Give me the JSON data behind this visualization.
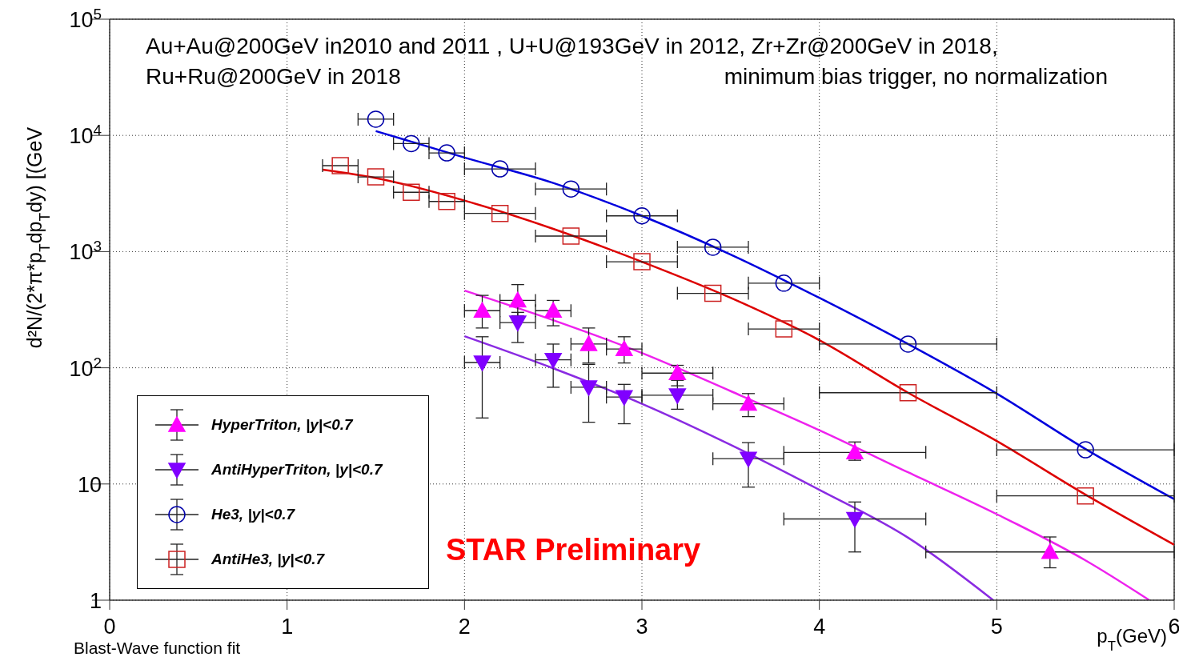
{
  "chart_data": {
    "type": "scatter",
    "xlabel": "p$_{T}$(GeV)",
    "ylabel": "d²N/(2*π*p$_{T}$dp$_{T}$dy) [(GeV",
    "log": "y",
    "xlim": [
      0,
      6
    ],
    "xticks": [
      0,
      1,
      2,
      3,
      4,
      5,
      6
    ],
    "ylim": [
      1,
      100000
    ],
    "yticks": [
      1,
      10,
      {
        "value": 100,
        "label": "10$^{2}$"
      },
      {
        "value": 1000,
        "label": "10$^{3}$"
      },
      {
        "value": 10000,
        "label": "10$^{4}$"
      },
      {
        "value": 100000,
        "label": "10$^{5}$"
      }
    ],
    "grid": true,
    "legend": "bottom left",
    "annotations": [
      "Au+Au@200GeV in2010 and 2011 , U+U@193GeV in 2012, Zr+Zr@200GeV in 2018,",
      "Ru+Ru@200GeV in 2018",
      "minimum bias trigger, no normalization",
      "STAR Preliminary",
      "Blast-Wave function fit"
    ],
    "series": [
      {
        "name": "HyperTriton, |y|<0.7",
        "marker": "triangle",
        "color": "#ff00ff",
        "x": [
          2.1,
          2.3,
          2.5,
          2.7,
          2.9,
          3.2,
          3.6,
          4.2,
          5.3
        ],
        "values": [
          310,
          380,
          310,
          160,
          145,
          90,
          49,
          18.7,
          2.6
        ],
        "errors": [
          [
            220,
            420
          ],
          [
            280,
            520
          ],
          [
            230,
            380
          ],
          [
            110,
            220
          ],
          [
            110,
            185
          ],
          [
            70,
            105
          ],
          [
            38,
            60
          ],
          [
            16,
            23
          ],
          [
            1.9,
            3.5
          ]
        ],
        "xerrors": [
          0.1,
          0.1,
          0.1,
          0.1,
          0.1,
          0.2,
          0.2,
          0.4,
          0.7
        ]
      },
      {
        "name": "AntiHyperTriton, |y|<0.7",
        "marker": "triangle-down",
        "color": "#8000ff",
        "x": [
          2.1,
          2.3,
          2.5,
          2.7,
          2.9,
          3.2,
          3.6,
          4.2
        ],
        "values": [
          111,
          245,
          117,
          68,
          56,
          58,
          16.5,
          5
        ],
        "errors": [
          [
            37,
            185
          ],
          [
            165,
            300
          ],
          [
            68,
            160
          ],
          [
            34,
            107
          ],
          [
            33,
            72
          ],
          [
            44,
            78
          ],
          [
            9.4,
            22.7
          ],
          [
            2.6,
            7
          ]
        ],
        "xerrors": [
          0.1,
          0.1,
          0.1,
          0.1,
          0.1,
          0.2,
          0.2,
          0.4
        ]
      },
      {
        "name": "He3, |y|<0.7",
        "marker": "circle",
        "color": "#0000aa",
        "x": [
          1.5,
          1.7,
          1.9,
          2.2,
          2.6,
          3.0,
          3.4,
          3.8,
          4.5,
          5.5
        ],
        "values": [
          13800,
          8500,
          7070,
          5150,
          3460,
          2030,
          1090,
          535,
          160,
          19.7
        ],
        "xerrors": [
          0.1,
          0.1,
          0.1,
          0.2,
          0.2,
          0.2,
          0.2,
          0.2,
          0.5,
          0.5
        ]
      },
      {
        "name": "AntiHe3, |y|<0.7",
        "marker": "square",
        "color": "#cc2222",
        "x": [
          1.3,
          1.5,
          1.7,
          1.9,
          2.2,
          2.6,
          3.0,
          3.4,
          3.8,
          4.5,
          5.5
        ],
        "values": [
          5490,
          4390,
          3240,
          2700,
          2130,
          1360,
          818,
          437,
          216,
          61,
          7.9
        ],
        "xerrors": [
          0.1,
          0.1,
          0.1,
          0.1,
          0.2,
          0.2,
          0.2,
          0.2,
          0.2,
          0.5,
          0.5
        ]
      },
      {
        "type": "line",
        "color": "#0000dd",
        "x": [
          1.5,
          2,
          2.5,
          3,
          3.5,
          4,
          4.5,
          5,
          5.5,
          6
        ],
        "values": [
          10900,
          6450,
          3900,
          2030,
          944,
          400,
          160,
          60,
          20,
          7.4
        ]
      },
      {
        "type": "line",
        "color": "#dd0000",
        "x": [
          1.2,
          1.5,
          2,
          2.5,
          3,
          3.5,
          4,
          4.5,
          5,
          5.5,
          6
        ],
        "values": [
          5070,
          4300,
          2750,
          1570,
          818,
          400,
          173,
          61,
          23.4,
          8.1,
          3.0
        ]
      },
      {
        "type": "line",
        "color": "#ee22ee",
        "x": [
          2,
          2.5,
          3,
          3.5,
          4,
          4.5,
          5,
          5.5,
          5.86
        ],
        "values": [
          462,
          257,
          134,
          63,
          29,
          12.6,
          5.5,
          2.2,
          1
        ]
      },
      {
        "type": "line",
        "color": "#8a2be2",
        "x": [
          2,
          2.5,
          3,
          3.5,
          4,
          4.5,
          4.98
        ],
        "values": [
          187,
          99,
          49,
          21.7,
          8.9,
          3.45,
          1
        ]
      }
    ]
  }
}
